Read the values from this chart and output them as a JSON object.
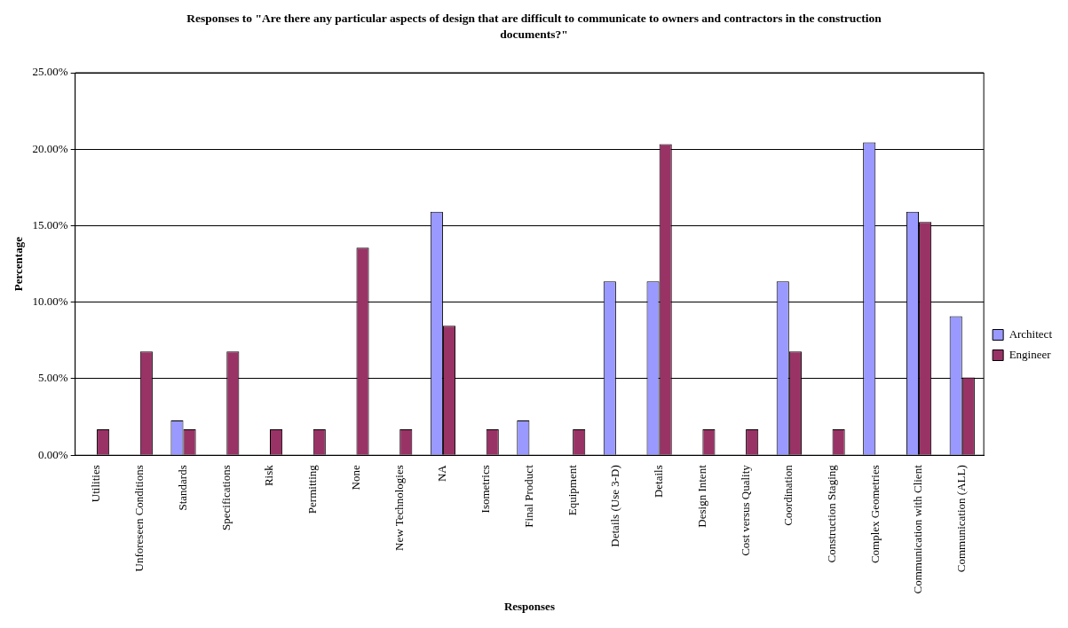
{
  "chart_data": {
    "type": "bar",
    "title": "Responses to \"Are there any particular aspects of design that are difficult to communicate to owners and contractors in the construction documents?\"",
    "xlabel": "Responses",
    "ylabel": "Percentage",
    "categories": [
      "Utilities",
      "Unforeseen Conditions",
      "Standards",
      "Specifications",
      "Risk",
      "Permitting",
      "None",
      "New Technologies",
      "NA",
      "Isometrics",
      "Final Product",
      "Equipment",
      "Details (Use 3-D)",
      "Details",
      "Design Intent",
      "Cost versus Quality",
      "Coordination",
      "Construction Staging",
      "Complex Geometries",
      "Communication with Client",
      "Communication (ALL)"
    ],
    "series": [
      {
        "name": "Architect",
        "color": "#9999ff",
        "values": [
          0,
          0,
          2.27,
          0,
          0,
          0,
          0,
          0,
          15.91,
          0,
          2.27,
          0,
          11.36,
          11.36,
          0,
          0,
          11.36,
          0,
          20.45,
          15.91,
          9.09
        ]
      },
      {
        "name": "Engineer",
        "color": "#993366",
        "values": [
          1.69,
          6.78,
          1.69,
          6.78,
          1.69,
          1.69,
          13.56,
          1.69,
          8.47,
          1.69,
          0,
          1.69,
          0,
          20.34,
          1.69,
          1.69,
          6.78,
          1.69,
          0,
          15.25,
          5.08
        ]
      }
    ],
    "ylim": [
      0,
      25
    ],
    "yticks": [
      {
        "value": 0,
        "label": "0.00%"
      },
      {
        "value": 5,
        "label": "5.00%"
      },
      {
        "value": 10,
        "label": "10.00%"
      },
      {
        "value": 15,
        "label": "15.00%"
      },
      {
        "value": 20,
        "label": "20.00%"
      },
      {
        "value": 25,
        "label": "25.00%"
      }
    ],
    "grid": "y",
    "legend": "right"
  }
}
